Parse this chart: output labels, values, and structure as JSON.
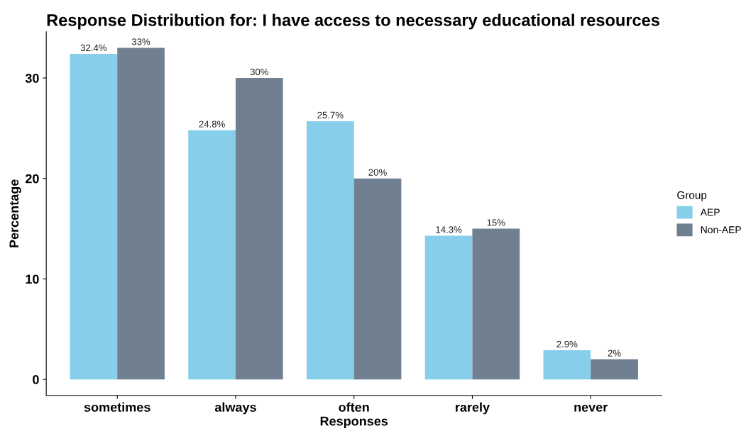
{
  "chart_data": {
    "type": "bar",
    "title": "Response Distribution for: I have access to necessary educational resources",
    "xlabel": "Responses",
    "ylabel": "Percentage",
    "legend_title": "Group",
    "categories": [
      "sometimes",
      "always",
      "often",
      "rarely",
      "never"
    ],
    "series": [
      {
        "name": "AEP",
        "color": "#87ceeb",
        "values": [
          32.4,
          24.8,
          25.7,
          14.3,
          2.9
        ],
        "value_labels": [
          "32.4%",
          "24.8%",
          "25.7%",
          "14.3%",
          "2.9%"
        ]
      },
      {
        "name": "Non-AEP",
        "color": "#708090",
        "values": [
          33,
          30,
          20,
          15,
          2
        ],
        "value_labels": [
          "33%",
          "30%",
          "20%",
          "15%",
          "2%"
        ]
      }
    ],
    "ylim": [
      -1.6,
      34.6
    ],
    "yticks": [
      0,
      10,
      20,
      30
    ],
    "grid": false,
    "legend": "right"
  }
}
